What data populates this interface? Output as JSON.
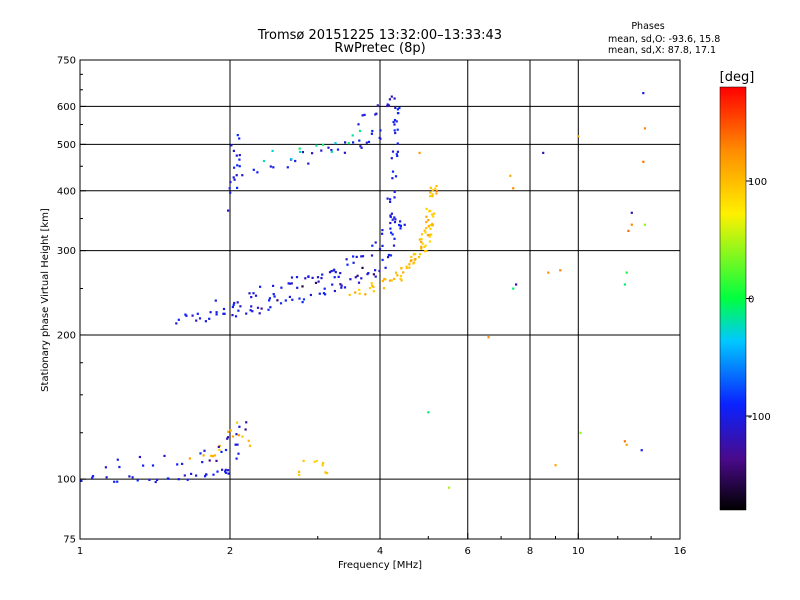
{
  "chart_data": {
    "type": "scatter",
    "title": "Tromsø 20151225 13:32:00–13:33:43",
    "subtitle": "RwPretec (8p)",
    "xlabel": "Frequency [MHz]",
    "ylabel": "Stationary phase Virtual Height [km]",
    "x_scale": "log",
    "y_scale": "log",
    "xlim": [
      1,
      16
    ],
    "ylim": [
      75,
      750
    ],
    "x_ticks": [
      {
        "value": 1,
        "label": "1"
      },
      {
        "value": 2,
        "label": "2"
      },
      {
        "value": 4,
        "label": "4"
      },
      {
        "value": 6,
        "label": "6"
      },
      {
        "value": 8,
        "label": "8"
      },
      {
        "value": 10,
        "label": "10"
      },
      {
        "value": 16,
        "label": "16"
      }
    ],
    "y_ticks": [
      {
        "value": 75,
        "label": "75"
      },
      {
        "value": 100,
        "label": "100"
      },
      {
        "value": 200,
        "label": "200"
      },
      {
        "value": 300,
        "label": "300"
      },
      {
        "value": 400,
        "label": "400"
      },
      {
        "value": 500,
        "label": "500"
      },
      {
        "value": 600,
        "label": "600"
      },
      {
        "value": 750,
        "label": "750"
      }
    ],
    "x_grid": [
      2,
      4,
      6,
      8,
      10
    ],
    "y_grid": [
      100,
      200,
      300,
      400,
      500,
      600
    ],
    "grid": true,
    "colorbar": {
      "title": "[deg]",
      "range": [
        -180,
        180
      ],
      "ticks": [
        {
          "value": 100,
          "label": "100"
        },
        {
          "value": 0,
          "label": "0"
        },
        {
          "value": -100,
          "label": "-100"
        }
      ]
    },
    "phases": {
      "title": "Phases",
      "line_o": "mean, sd,O: -93.6, 15.8",
      "line_x": "mean, sd,X:  87.8, 17.1"
    },
    "traces": [
      {
        "fx": [
          1.0,
          1.2,
          1.4,
          1.6,
          1.8,
          1.95
        ],
        "hy": [
          100,
          100,
          100,
          101,
          103,
          104
        ],
        "phase": -100,
        "n": 5,
        "jx": 0.02,
        "jy": 0.02
      },
      {
        "fx": [
          1.1,
          1.3,
          1.5,
          1.7,
          1.9,
          2.1
        ],
        "hy": [
          104,
          106,
          108,
          110,
          112,
          116
        ],
        "phase": -100,
        "n": 3,
        "jx": 0.04,
        "jy": 0.05
      },
      {
        "fx": [
          1.7,
          1.85,
          1.95,
          2.05,
          2.15
        ],
        "hy": [
          110,
          116,
          122,
          128,
          120
        ],
        "phase": 100,
        "n": 3,
        "jx": 0.03,
        "jy": 0.05
      },
      {
        "fx": [
          1.8,
          1.95,
          2.1
        ],
        "hy": [
          112,
          120,
          130
        ],
        "phase": -120,
        "n": 3,
        "jx": 0.03,
        "jy": 0.05
      },
      {
        "fx": [
          2.7,
          2.9,
          3.1
        ],
        "hy": [
          105,
          107,
          106
        ],
        "phase": 90,
        "n": 3,
        "jx": 0.02,
        "jy": 0.03
      },
      {
        "fx": [
          1.55,
          1.7,
          1.85,
          2.0,
          2.2,
          2.5,
          2.8,
          3.1,
          3.4,
          3.7,
          4.0,
          4.2,
          4.4
        ],
        "hy": [
          215,
          218,
          219,
          221,
          224,
          232,
          240,
          248,
          254,
          262,
          278,
          300,
          340
        ],
        "phase": -100,
        "n": 5,
        "jx": 0.02,
        "jy": 0.025
      },
      {
        "fx": [
          2.0,
          2.3,
          2.6,
          2.9,
          3.2,
          3.5,
          3.8,
          4.05,
          4.25
        ],
        "hy": [
          225,
          238,
          250,
          262,
          272,
          284,
          298,
          318,
          350
        ],
        "phase": -100,
        "n": 5,
        "jx": 0.02,
        "jy": 0.03
      },
      {
        "fx": [
          1.9,
          2.1,
          2.3,
          2.6,
          2.9,
          3.3
        ],
        "hy": [
          230,
          236,
          245,
          254,
          262,
          270
        ],
        "phase": -110,
        "n": 3,
        "jx": 0.03,
        "jy": 0.03
      },
      {
        "fx": [
          4.15,
          4.25,
          4.3,
          4.32
        ],
        "hy": [
          360,
          420,
          500,
          580
        ],
        "phase": -100,
        "n": 7,
        "jx": 0.015,
        "jy": 0.04
      },
      {
        "fx": [
          2.0,
          2.4,
          2.8,
          3.2,
          3.6,
          3.95
        ],
        "hy": [
          420,
          450,
          468,
          484,
          502,
          524
        ],
        "phase": -100,
        "n": 5,
        "jx": 0.03,
        "jy": 0.03
      },
      {
        "fx": [
          2.0,
          2.05,
          2.1,
          2.05
        ],
        "hy": [
          380,
          420,
          460,
          500
        ],
        "phase": -100,
        "n": 4,
        "jx": 0.02,
        "jy": 0.05
      },
      {
        "fx": [
          3.6,
          3.9,
          4.1,
          4.25
        ],
        "hy": [
          560,
          580,
          600,
          620
        ],
        "phase": -110,
        "n": 3,
        "jx": 0.02,
        "jy": 0.03
      },
      {
        "fx": [
          2.4,
          2.6,
          2.8,
          3.0,
          3.3,
          3.6
        ],
        "hy": [
          468,
          480,
          476,
          492,
          500,
          520
        ],
        "phase": -20,
        "n": 2,
        "jx": 0.03,
        "jy": 0.03
      },
      {
        "fx": [
          3.5,
          3.8,
          4.1,
          4.4,
          4.7,
          4.9,
          5.0,
          5.05,
          5.1
        ],
        "hy": [
          243,
          250,
          258,
          268,
          284,
          304,
          330,
          360,
          400
        ],
        "phase": 100,
        "n": 6,
        "jx": 0.02,
        "jy": 0.03
      },
      {
        "fx": [
          4.3,
          4.6,
          4.8,
          4.95,
          5.05
        ],
        "hy": [
          262,
          280,
          300,
          320,
          350
        ],
        "phase": 100,
        "n": 6,
        "jx": 0.02,
        "jy": 0.04
      },
      {
        "fx": [
          2.3,
          2.8,
          3.3,
          3.8
        ],
        "hy": [
          230,
          250,
          262,
          276
        ],
        "phase": -150,
        "n": 2,
        "jx": 0.03,
        "jy": 0.03
      },
      {
        "fx": [
          4.8,
          5.2,
          6.6,
          7.3,
          7.4,
          8.7,
          9.0,
          9.2,
          10.0,
          12.5,
          12.8,
          13.6
        ],
        "hy": [
          480,
          400,
          198,
          430,
          405,
          270,
          107,
          273,
          520,
          118,
          340,
          540
        ],
        "phase": 120,
        "n": 1,
        "jx": 0.0,
        "jy": 0.0
      },
      {
        "fx": [
          13.5,
          12.6,
          12.4
        ],
        "hy": [
          460,
          330,
          120
        ],
        "phase": 150,
        "n": 1,
        "jx": 0.0,
        "jy": 0.0
      },
      {
        "fx": [
          13.5,
          13.4,
          8.5,
          12.8,
          7.5
        ],
        "hy": [
          640,
          115,
          480,
          360,
          255
        ],
        "phase": -110,
        "n": 1,
        "jx": 0.0,
        "jy": 0.0
      },
      {
        "fx": [
          7.4,
          12.5,
          12.4,
          5.0
        ],
        "hy": [
          250,
          270,
          255,
          138
        ],
        "phase": -10,
        "n": 1,
        "jx": 0.0,
        "jy": 0.0
      },
      {
        "fx": [
          13.6,
          10.1,
          5.5
        ],
        "hy": [
          340,
          125,
          96
        ],
        "phase": 50,
        "n": 1,
        "jx": 0.0,
        "jy": 0.0
      }
    ]
  }
}
